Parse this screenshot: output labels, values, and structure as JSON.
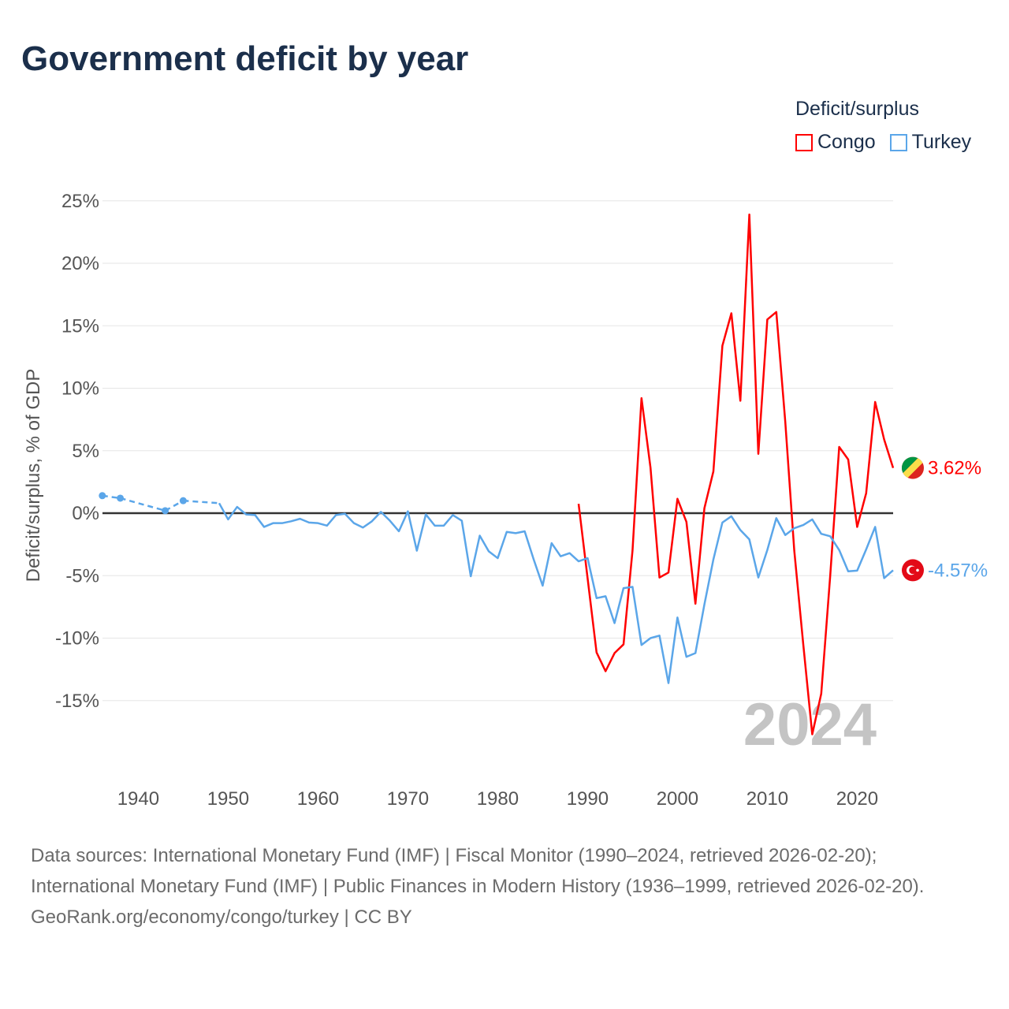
{
  "title": "Government deficit by year",
  "legend": {
    "title": "Deficit/surplus",
    "items": [
      {
        "label": "Congo",
        "color": "#ff0000"
      },
      {
        "label": "Turkey",
        "color": "#5ba6e9"
      }
    ]
  },
  "year_watermark": "2024",
  "footer": {
    "sources": "Data sources: International Monetary Fund (IMF) | Fiscal Monitor (1990–2024, retrieved 2026-02-20); International Monetary Fund (IMF) | Public Finances in Modern History (1936–1999, retrieved 2026-02-20).",
    "credit": "GeoRank.org/economy/congo/turkey | CC BY"
  },
  "chart_data": {
    "type": "line",
    "title": "Government deficit by year",
    "xlabel": "",
    "ylabel": "Deficit/surplus, % of GDP",
    "xlim": [
      1936,
      2024
    ],
    "ylim": [
      -20,
      25
    ],
    "x_ticks": [
      "1940",
      "1950",
      "1960",
      "1970",
      "1980",
      "1990",
      "2000",
      "2010",
      "2020"
    ],
    "y_ticks": [
      {
        "value": 25,
        "label": "25%"
      },
      {
        "value": 20,
        "label": "20%"
      },
      {
        "value": 15,
        "label": "15%"
      },
      {
        "value": 10,
        "label": "10%"
      },
      {
        "value": 5,
        "label": "5%"
      },
      {
        "value": 0,
        "label": "0%"
      },
      {
        "value": -5,
        "label": "-5%"
      },
      {
        "value": -10,
        "label": "-10%"
      },
      {
        "value": -15,
        "label": "-15%"
      }
    ],
    "grid": true,
    "legend_position": "top-right",
    "series": [
      {
        "name": "Congo",
        "color": "#ff0000",
        "end_label": "3.62%",
        "points": [
          [
            1989,
            0.75
          ],
          [
            1990,
            -5.2
          ],
          [
            1991,
            -11.15
          ],
          [
            1992,
            -12.65
          ],
          [
            1993,
            -11.2
          ],
          [
            1994,
            -10.5
          ],
          [
            1995,
            -3.0
          ],
          [
            1996,
            9.2
          ],
          [
            1997,
            3.65
          ],
          [
            1998,
            -5.15
          ],
          [
            1999,
            -4.75
          ],
          [
            2000,
            1.15
          ],
          [
            2001,
            -0.7
          ],
          [
            2002,
            -7.25
          ],
          [
            2003,
            0.4
          ],
          [
            2004,
            3.35
          ],
          [
            2005,
            13.4
          ],
          [
            2006,
            16.0
          ],
          [
            2007,
            9.0
          ],
          [
            2008,
            23.9
          ],
          [
            2009,
            4.75
          ],
          [
            2010,
            15.5
          ],
          [
            2011,
            16.1
          ],
          [
            2012,
            7.3
          ],
          [
            2013,
            -3.0
          ],
          [
            2014,
            -10.5
          ],
          [
            2015,
            -17.7
          ],
          [
            2016,
            -14.45
          ],
          [
            2017,
            -5.0
          ],
          [
            2018,
            5.3
          ],
          [
            2019,
            4.3
          ],
          [
            2020,
            -1.1
          ],
          [
            2021,
            1.6
          ],
          [
            2022,
            8.9
          ],
          [
            2023,
            5.9
          ],
          [
            2024,
            3.62
          ]
        ]
      },
      {
        "name": "Turkey",
        "color": "#5ba6e9",
        "end_label": "-4.57%",
        "points": [
          [
            1936,
            1.4
          ],
          [
            1938,
            1.2
          ],
          [
            1943,
            0.2
          ],
          [
            1945,
            1.0
          ],
          [
            1949,
            0.8
          ],
          [
            1950,
            -0.5
          ],
          [
            1951,
            0.5
          ],
          [
            1952,
            -0.1
          ],
          [
            1953,
            -0.15
          ],
          [
            1954,
            -1.1
          ],
          [
            1955,
            -0.8
          ],
          [
            1956,
            -0.8
          ],
          [
            1957,
            -0.65
          ],
          [
            1958,
            -0.45
          ],
          [
            1959,
            -0.75
          ],
          [
            1960,
            -0.8
          ],
          [
            1961,
            -1.0
          ],
          [
            1962,
            -0.15
          ],
          [
            1963,
            -0.05
          ],
          [
            1964,
            -0.8
          ],
          [
            1965,
            -1.15
          ],
          [
            1966,
            -0.65
          ],
          [
            1967,
            0.1
          ],
          [
            1968,
            -0.6
          ],
          [
            1969,
            -1.45
          ],
          [
            1970,
            0.15
          ],
          [
            1971,
            -3.0
          ],
          [
            1972,
            -0.1
          ],
          [
            1973,
            -1.0
          ],
          [
            1974,
            -1.0
          ],
          [
            1975,
            -0.15
          ],
          [
            1976,
            -0.6
          ],
          [
            1977,
            -5.05
          ],
          [
            1978,
            -1.8
          ],
          [
            1979,
            -3.05
          ],
          [
            1980,
            -3.6
          ],
          [
            1981,
            -1.5
          ],
          [
            1982,
            -1.6
          ],
          [
            1983,
            -1.45
          ],
          [
            1984,
            -3.7
          ],
          [
            1985,
            -5.8
          ],
          [
            1986,
            -2.4
          ],
          [
            1987,
            -3.45
          ],
          [
            1988,
            -3.2
          ],
          [
            1989,
            -3.85
          ],
          [
            1990,
            -3.6
          ],
          [
            1991,
            -6.8
          ],
          [
            1992,
            -6.65
          ],
          [
            1993,
            -8.8
          ],
          [
            1994,
            -6.0
          ],
          [
            1995,
            -5.9
          ],
          [
            1996,
            -10.55
          ],
          [
            1997,
            -10.0
          ],
          [
            1998,
            -9.8
          ],
          [
            1999,
            -13.6
          ],
          [
            2000,
            -8.35
          ],
          [
            2001,
            -11.5
          ],
          [
            2002,
            -11.2
          ],
          [
            2003,
            -7.3
          ],
          [
            2004,
            -3.7
          ],
          [
            2005,
            -0.75
          ],
          [
            2006,
            -0.25
          ],
          [
            2007,
            -1.35
          ],
          [
            2008,
            -2.1
          ],
          [
            2009,
            -5.15
          ],
          [
            2010,
            -2.95
          ],
          [
            2011,
            -0.4
          ],
          [
            2012,
            -1.75
          ],
          [
            2013,
            -1.2
          ],
          [
            2014,
            -0.95
          ],
          [
            2015,
            -0.5
          ],
          [
            2016,
            -1.65
          ],
          [
            2017,
            -1.85
          ],
          [
            2018,
            -2.95
          ],
          [
            2019,
            -4.65
          ],
          [
            2020,
            -4.6
          ],
          [
            2021,
            -2.9
          ],
          [
            2022,
            -1.1
          ],
          [
            2023,
            -5.2
          ],
          [
            2024,
            -4.57
          ]
        ]
      }
    ]
  }
}
